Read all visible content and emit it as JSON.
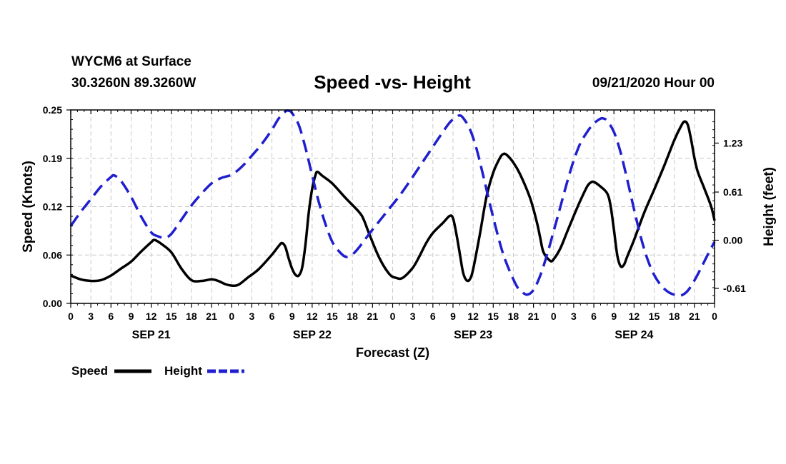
{
  "header": {
    "station": "WYCM6 at Surface",
    "coords": "30.3260N 89.3260W",
    "title": "Speed -vs- Height",
    "stamp": "09/21/2020 Hour 00"
  },
  "chart_data": {
    "type": "line",
    "title": "Speed -vs- Height",
    "xlabel": "Forecast (Z)",
    "ylabel_left": "Speed (Knots)",
    "ylabel_right": "Height (feet)",
    "x_range_hours": [
      0,
      96
    ],
    "y_left_range": [
      0,
      0.25
    ],
    "y_left_ticks": [
      "0.00",
      "0.06",
      "0.12",
      "0.19",
      "0.25"
    ],
    "y_left_tick_values": [
      0,
      0.0625,
      0.125,
      0.1875,
      0.25
    ],
    "y_right_range": [
      -0.8,
      1.65
    ],
    "y_right_ticks": [
      "-0.61",
      "0.00",
      "0.61",
      "1.23"
    ],
    "y_right_tick_values": [
      -0.61,
      0.0,
      0.61,
      1.23
    ],
    "x_ticks": [
      "0",
      "3",
      "6",
      "9",
      "12",
      "15",
      "18",
      "21",
      "0",
      "3",
      "6",
      "9",
      "12",
      "15",
      "18",
      "21",
      "0",
      "3",
      "6",
      "9",
      "12",
      "15",
      "18",
      "21",
      "0",
      "3",
      "6",
      "9",
      "12",
      "15",
      "18",
      "21",
      "0"
    ],
    "day_labels": [
      {
        "label": "SEP 21",
        "hour": 12
      },
      {
        "label": "SEP 22",
        "hour": 36
      },
      {
        "label": "SEP 23",
        "hour": 60
      },
      {
        "label": "SEP 24",
        "hour": 84
      }
    ],
    "grid": true,
    "series": [
      {
        "name": "Speed",
        "color": "#000000",
        "dash": "solid",
        "axis": "left",
        "points": [
          [
            0,
            0.036
          ],
          [
            1.5,
            0.031
          ],
          [
            3,
            0.029
          ],
          [
            4.5,
            0.03
          ],
          [
            6,
            0.036
          ],
          [
            7.5,
            0.045
          ],
          [
            9,
            0.054
          ],
          [
            10.5,
            0.067
          ],
          [
            12,
            0.079
          ],
          [
            12.5,
            0.082
          ],
          [
            13.5,
            0.077
          ],
          [
            15,
            0.066
          ],
          [
            16.5,
            0.045
          ],
          [
            18,
            0.03
          ],
          [
            19.5,
            0.029
          ],
          [
            21,
            0.031
          ],
          [
            22,
            0.029
          ],
          [
            23,
            0.025
          ],
          [
            24,
            0.023
          ],
          [
            25,
            0.024
          ],
          [
            26.5,
            0.034
          ],
          [
            28,
            0.044
          ],
          [
            30,
            0.063
          ],
          [
            31,
            0.074
          ],
          [
            31.5,
            0.078
          ],
          [
            32,
            0.073
          ],
          [
            32.5,
            0.058
          ],
          [
            33,
            0.045
          ],
          [
            33.5,
            0.037
          ],
          [
            34,
            0.036
          ],
          [
            34.5,
            0.046
          ],
          [
            35,
            0.076
          ],
          [
            35.5,
            0.118
          ],
          [
            36,
            0.148
          ],
          [
            36.5,
            0.166
          ],
          [
            36.8,
            0.17
          ],
          [
            37.5,
            0.165
          ],
          [
            39,
            0.155
          ],
          [
            41,
            0.136
          ],
          [
            43,
            0.118
          ],
          [
            43.7,
            0.108
          ],
          [
            44.5,
            0.09
          ],
          [
            46,
            0.059
          ],
          [
            47.5,
            0.038
          ],
          [
            48.5,
            0.033
          ],
          [
            49.5,
            0.033
          ],
          [
            51,
            0.046
          ],
          [
            52,
            0.061
          ],
          [
            53,
            0.078
          ],
          [
            54,
            0.091
          ],
          [
            55.5,
            0.104
          ],
          [
            56.5,
            0.113
          ],
          [
            57,
            0.11
          ],
          [
            57.5,
            0.09
          ],
          [
            58,
            0.065
          ],
          [
            58.5,
            0.04
          ],
          [
            59,
            0.03
          ],
          [
            59.5,
            0.031
          ],
          [
            60,
            0.044
          ],
          [
            61,
            0.089
          ],
          [
            62,
            0.138
          ],
          [
            63,
            0.169
          ],
          [
            64,
            0.188
          ],
          [
            64.5,
            0.193
          ],
          [
            65,
            0.192
          ],
          [
            66,
            0.182
          ],
          [
            67,
            0.167
          ],
          [
            68.5,
            0.136
          ],
          [
            69.5,
            0.105
          ],
          [
            70,
            0.085
          ],
          [
            70.5,
            0.066
          ],
          [
            71.5,
            0.055
          ],
          [
            72,
            0.057
          ],
          [
            73,
            0.071
          ],
          [
            74,
            0.092
          ],
          [
            75,
            0.113
          ],
          [
            76,
            0.133
          ],
          [
            77,
            0.151
          ],
          [
            77.5,
            0.156
          ],
          [
            78,
            0.157
          ],
          [
            79,
            0.151
          ],
          [
            80,
            0.142
          ],
          [
            80.5,
            0.126
          ],
          [
            81,
            0.095
          ],
          [
            81.5,
            0.062
          ],
          [
            82,
            0.048
          ],
          [
            82.5,
            0.05
          ],
          [
            83,
            0.061
          ],
          [
            84,
            0.082
          ],
          [
            85.5,
            0.117
          ],
          [
            87,
            0.147
          ],
          [
            88.5,
            0.178
          ],
          [
            90,
            0.211
          ],
          [
            91,
            0.229
          ],
          [
            91.5,
            0.235
          ],
          [
            92,
            0.231
          ],
          [
            92.5,
            0.212
          ],
          [
            93,
            0.188
          ],
          [
            93.5,
            0.17
          ],
          [
            94.5,
            0.148
          ],
          [
            95.5,
            0.125
          ],
          [
            96,
            0.107
          ]
        ]
      },
      {
        "name": "Height",
        "color": "#1f1fcf",
        "dash": "dashed",
        "axis": "right",
        "points": [
          [
            0,
            0.18
          ],
          [
            1.5,
            0.36
          ],
          [
            3,
            0.52
          ],
          [
            4.5,
            0.68
          ],
          [
            6,
            0.8
          ],
          [
            6.5,
            0.82
          ],
          [
            7.5,
            0.75
          ],
          [
            9,
            0.55
          ],
          [
            10.5,
            0.3
          ],
          [
            12,
            0.1
          ],
          [
            13,
            0.05
          ],
          [
            14,
            0.03
          ],
          [
            15,
            0.08
          ],
          [
            16.5,
            0.26
          ],
          [
            18,
            0.44
          ],
          [
            19.5,
            0.59
          ],
          [
            21,
            0.72
          ],
          [
            22.5,
            0.79
          ],
          [
            24,
            0.83
          ],
          [
            25.5,
            0.93
          ],
          [
            27,
            1.07
          ],
          [
            28.5,
            1.22
          ],
          [
            30,
            1.4
          ],
          [
            31,
            1.54
          ],
          [
            32,
            1.63
          ],
          [
            32.5,
            1.64
          ],
          [
            33,
            1.61
          ],
          [
            34,
            1.46
          ],
          [
            35,
            1.17
          ],
          [
            36,
            0.82
          ],
          [
            37,
            0.48
          ],
          [
            38,
            0.2
          ],
          [
            39,
            -0.02
          ],
          [
            40,
            -0.14
          ],
          [
            41,
            -0.21
          ],
          [
            42,
            -0.18
          ],
          [
            43,
            -0.09
          ],
          [
            44.5,
            0.08
          ],
          [
            46,
            0.24
          ],
          [
            47.5,
            0.4
          ],
          [
            49,
            0.56
          ],
          [
            50.5,
            0.74
          ],
          [
            52,
            0.93
          ],
          [
            53.5,
            1.12
          ],
          [
            55,
            1.31
          ],
          [
            56.5,
            1.49
          ],
          [
            57.5,
            1.56
          ],
          [
            58,
            1.58
          ],
          [
            58.5,
            1.55
          ],
          [
            59.5,
            1.41
          ],
          [
            60.5,
            1.16
          ],
          [
            61.5,
            0.82
          ],
          [
            62.5,
            0.46
          ],
          [
            63.5,
            0.12
          ],
          [
            64.5,
            -0.18
          ],
          [
            65.5,
            -0.4
          ],
          [
            66.5,
            -0.58
          ],
          [
            67,
            -0.63
          ],
          [
            68,
            -0.69
          ],
          [
            69,
            -0.63
          ],
          [
            70,
            -0.45
          ],
          [
            71,
            -0.19
          ],
          [
            72,
            0.11
          ],
          [
            73,
            0.42
          ],
          [
            74,
            0.73
          ],
          [
            75,
            1.01
          ],
          [
            76,
            1.23
          ],
          [
            77,
            1.37
          ],
          [
            77.5,
            1.43
          ],
          [
            78,
            1.48
          ],
          [
            79,
            1.54
          ],
          [
            79.5,
            1.54
          ],
          [
            80,
            1.51
          ],
          [
            81,
            1.37
          ],
          [
            82,
            1.11
          ],
          [
            83,
            0.76
          ],
          [
            84,
            0.39
          ],
          [
            85,
            0.04
          ],
          [
            86,
            -0.24
          ],
          [
            87,
            -0.44
          ],
          [
            88,
            -0.57
          ],
          [
            89,
            -0.65
          ],
          [
            90,
            -0.69
          ],
          [
            91,
            -0.7
          ],
          [
            92,
            -0.64
          ],
          [
            93,
            -0.51
          ],
          [
            94,
            -0.35
          ],
          [
            95,
            -0.18
          ],
          [
            96,
            -0.02
          ]
        ]
      }
    ],
    "legend": [
      {
        "label": "Speed",
        "color": "#000000",
        "dash": "solid"
      },
      {
        "label": "Height",
        "color": "#1f1fcf",
        "dash": "dashed"
      }
    ],
    "legend_position": "bottom-left"
  }
}
